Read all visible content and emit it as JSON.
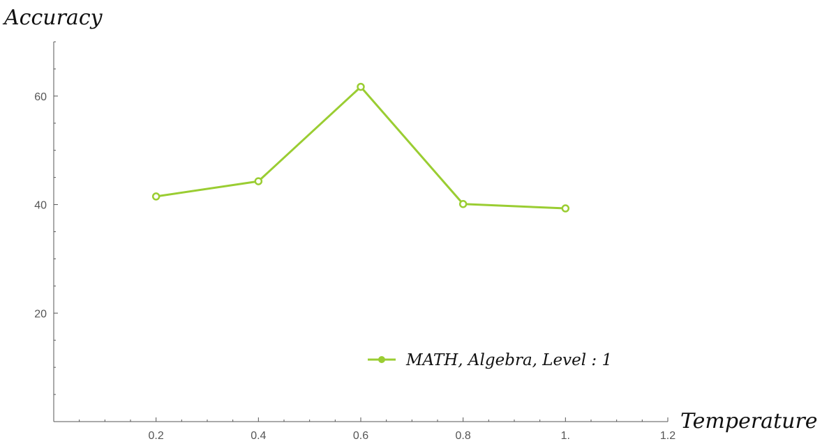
{
  "chart_data": {
    "type": "line",
    "title": "",
    "xlabel": "Temperature",
    "ylabel": "Accuracy",
    "x": [
      0.2,
      0.4,
      0.6,
      0.8,
      1.0
    ],
    "series": [
      {
        "name": "MATH, Algebra, Level : 1",
        "values": [
          41.5,
          44.3,
          61.7,
          40.1,
          39.3
        ],
        "color": "#9acd32"
      }
    ],
    "xlim": [
      0,
      1.2
    ],
    "ylim": [
      0,
      70
    ],
    "xticks": [
      0.2,
      0.4,
      0.6,
      0.8,
      1.0,
      1.2
    ],
    "xtick_labels": [
      "0.2",
      "0.4",
      "0.6",
      "0.8",
      "1.",
      "1.2"
    ],
    "yticks": [
      20,
      40,
      60
    ],
    "ytick_labels": [
      "20",
      "40",
      "60"
    ],
    "grid": false,
    "legend_position": "bottom-right",
    "axis_color": "#555555"
  }
}
